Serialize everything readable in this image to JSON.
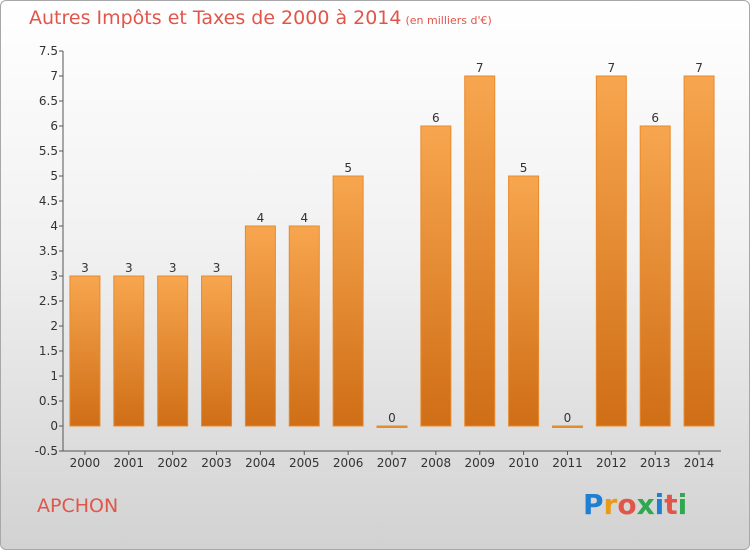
{
  "title": "Autres Impôts et Taxes de 2000 à 2014",
  "unit": "(en milliers d'€)",
  "place": "APCHON",
  "logo": {
    "text": "Proxiti",
    "colors": [
      "#1f7fd0",
      "#e89a1a",
      "#e0564a",
      "#2fa84f",
      "#1f7fd0",
      "#e0564a",
      "#2fa84f"
    ]
  },
  "chart_data": {
    "type": "bar",
    "categories": [
      "2000",
      "2001",
      "2002",
      "2003",
      "2004",
      "2005",
      "2006",
      "2007",
      "2008",
      "2009",
      "2010",
      "2011",
      "2012",
      "2013",
      "2014"
    ],
    "values": [
      3,
      3,
      3,
      3,
      4,
      4,
      5,
      0,
      6,
      7,
      5,
      0,
      7,
      6,
      7
    ],
    "value_labels": [
      "3",
      "3",
      "3",
      "3",
      "4",
      "4",
      "5",
      "0",
      "6",
      "7",
      "5",
      "0",
      "7",
      "6",
      "7"
    ],
    "y_ticks": [
      "-0.5",
      "0",
      "0.5",
      "1",
      "1.5",
      "2",
      "2.5",
      "3",
      "3.5",
      "4",
      "4.5",
      "5",
      "5.5",
      "6",
      "6.5",
      "7",
      "7.5"
    ],
    "ylim": [
      -0.5,
      7.5
    ],
    "grid": false,
    "bar_color_top": "#f7a64f",
    "bar_color_bottom": "#cf6e16",
    "bar_stroke": "#e88a2e"
  }
}
